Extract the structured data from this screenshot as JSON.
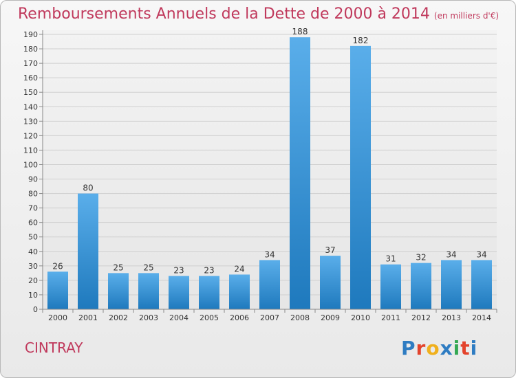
{
  "header": {
    "title": "Remboursements Annuels de la Dette de 2000 à 2014",
    "unit": "(en milliers d'€)"
  },
  "footer": {
    "commune": "CINTRAY",
    "logo_text": "Proxiti"
  },
  "colors": {
    "title": "#c0395c",
    "bar_top": "#5aaeea",
    "bar_bottom": "#1e79bd",
    "logo": [
      "#2e7cc2",
      "#e3432c",
      "#f0b01d",
      "#2e7cc2",
      "#34a853",
      "#e3432c",
      "#2e7cc2"
    ]
  },
  "chart_data": {
    "type": "bar",
    "title": "Remboursements Annuels de la Dette de 2000 à 2014",
    "unit": "(en milliers d'€)",
    "xlabel": "",
    "ylabel": "",
    "ylim": [
      0,
      190
    ],
    "y_ticks": [
      0,
      10,
      20,
      30,
      40,
      50,
      60,
      70,
      80,
      90,
      100,
      110,
      120,
      130,
      140,
      150,
      160,
      170,
      180,
      190
    ],
    "grid": true,
    "categories": [
      "2000",
      "2001",
      "2002",
      "2003",
      "2004",
      "2005",
      "2006",
      "2007",
      "2008",
      "2009",
      "2010",
      "2011",
      "2012",
      "2013",
      "2014"
    ],
    "values": [
      26,
      80,
      25,
      25,
      23,
      23,
      24,
      34,
      188,
      37,
      182,
      31,
      32,
      34,
      34
    ]
  }
}
